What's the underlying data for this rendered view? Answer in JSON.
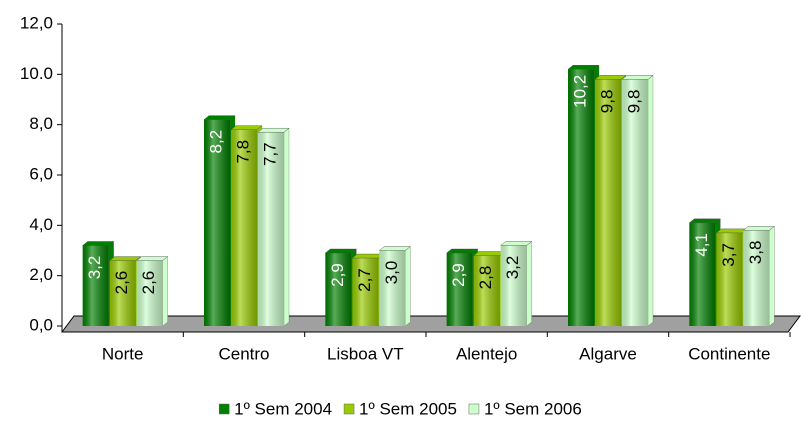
{
  "chart_data": {
    "type": "bar",
    "categories": [
      "Norte",
      "Centro",
      "Lisboa VT",
      "Alentejo",
      "Algarve",
      "Continente"
    ],
    "series": [
      {
        "name": "1º Sem 2004",
        "color": "#008000",
        "values": [
          3.2,
          8.2,
          2.9,
          2.9,
          10.2,
          4.1
        ],
        "value_labels": [
          "3,2",
          "8,2",
          "2,9",
          "2,9",
          "10,2",
          "4,1"
        ]
      },
      {
        "name": "1º Sem 2005",
        "color": "#99cc00",
        "values": [
          2.6,
          7.8,
          2.7,
          2.8,
          9.8,
          3.7
        ],
        "value_labels": [
          "2,6",
          "7,8",
          "2,7",
          "2,8",
          "9,8",
          "3,7"
        ]
      },
      {
        "name": "1º Sem 2006",
        "color": "#ccffcc",
        "values": [
          2.6,
          7.7,
          3.0,
          3.2,
          9.8,
          3.8
        ],
        "value_labels": [
          "2,6",
          "7,7",
          "3,0",
          "3,2",
          "9,8",
          "3,8"
        ]
      }
    ],
    "ylim": [
      0,
      12
    ],
    "yticks": [
      {
        "value": 0,
        "label": "0,0"
      },
      {
        "value": 2,
        "label": "2,0"
      },
      {
        "value": 4,
        "label": "4,0"
      },
      {
        "value": 6,
        "label": "6,0"
      },
      {
        "value": 8,
        "label": "8,0"
      },
      {
        "value": 10,
        "label": "10.0"
      },
      {
        "value": 12,
        "label": "12,0"
      }
    ],
    "legend": "bottom"
  }
}
